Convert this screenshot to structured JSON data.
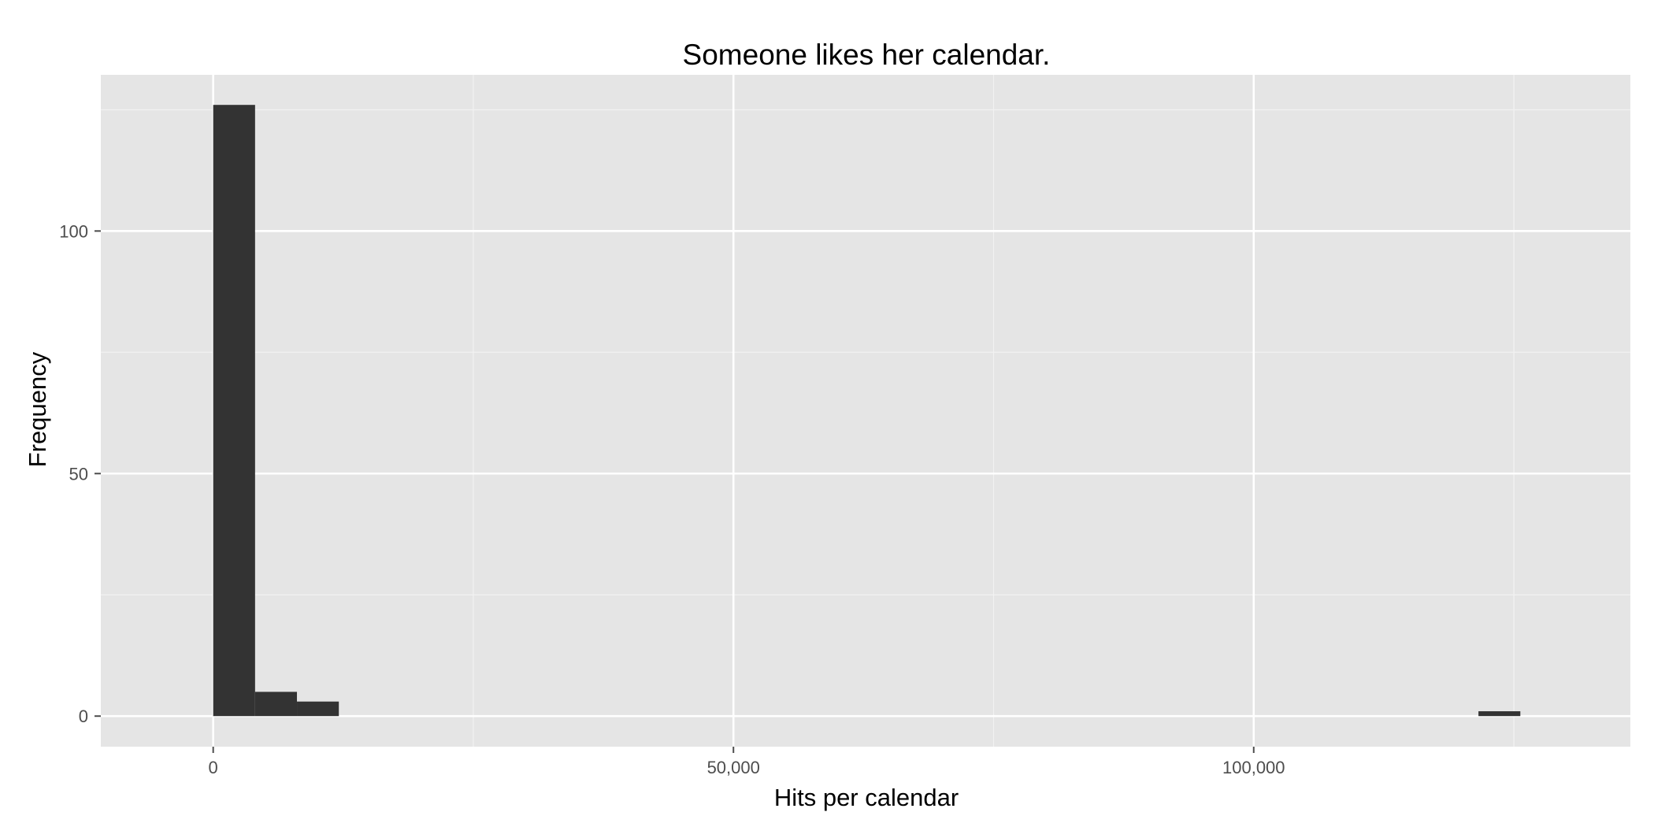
{
  "chart_data": {
    "type": "bar",
    "subtype": "histogram",
    "title": "Someone likes her calendar.",
    "xlabel": "Hits per calendar",
    "ylabel": "Frequency",
    "xlim": [
      -10800,
      136200
    ],
    "ylim": [
      -6.3,
      132.2
    ],
    "x_ticks": [
      {
        "value": 0,
        "label": "0"
      },
      {
        "value": 50000,
        "label": "50,000"
      },
      {
        "value": 100000,
        "label": "100,000"
      }
    ],
    "y_ticks": [
      {
        "value": 0,
        "label": "0"
      },
      {
        "value": 50,
        "label": "50"
      },
      {
        "value": 100,
        "label": "100"
      }
    ],
    "bin_width": 4025,
    "bins": [
      {
        "x_start": 0,
        "x_end": 4025,
        "count": 126
      },
      {
        "x_start": 4025,
        "x_end": 8050,
        "count": 5
      },
      {
        "x_start": 8050,
        "x_end": 12075,
        "count": 3
      },
      {
        "x_start": 121600,
        "x_end": 125625,
        "count": 1
      }
    ],
    "grid": true,
    "legend": "none",
    "colors": {
      "panel_background": "#e5e5e5",
      "grid_major": "#ffffff",
      "grid_minor": "#f2f2f2",
      "bar_fill": "#333333",
      "tick_color": "#4d4d4d"
    }
  }
}
